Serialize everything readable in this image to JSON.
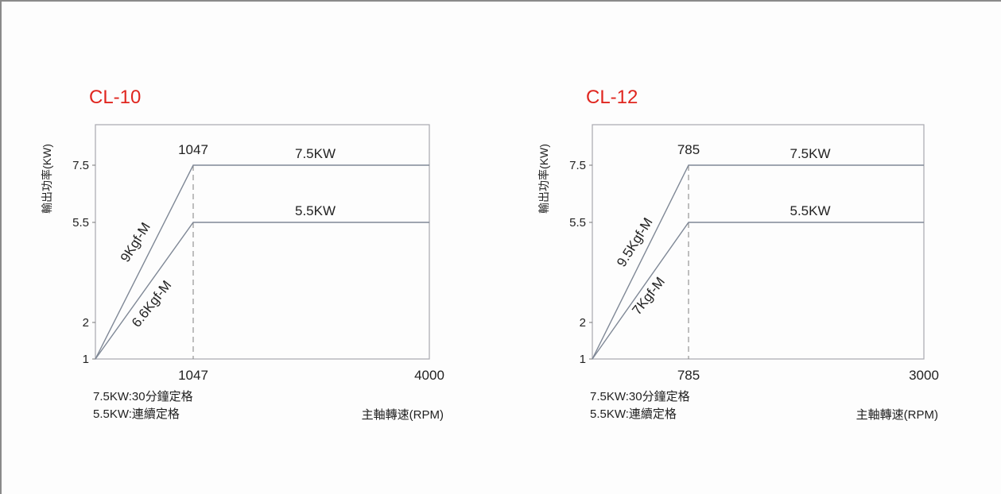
{
  "chart_data": [
    {
      "type": "line",
      "title": "CL-10",
      "ylabel": "輸出功率(KW)",
      "xlabel": "主軸轉速(RPM)",
      "yticks": [
        "1",
        "2",
        "5.5",
        "7.5"
      ],
      "xticks": [
        "1047",
        "4000"
      ],
      "knee_label": "1047",
      "xlim": [
        0,
        4000
      ],
      "series": [
        {
          "name": "7.5KW",
          "slope_label": "9Kgf-M",
          "x": [
            0,
            1047,
            4000
          ],
          "y": [
            1,
            7.5,
            7.5
          ]
        },
        {
          "name": "5.5KW",
          "slope_label": "6.6Kgf-M",
          "x": [
            0,
            1047,
            4000
          ],
          "y": [
            1,
            5.5,
            5.5
          ]
        }
      ],
      "notes": [
        "7.5KW:30分鐘定格",
        "5.5KW:連續定格"
      ]
    },
    {
      "type": "line",
      "title": "CL-12",
      "ylabel": "輸出功率(KW)",
      "xlabel": "主軸轉速(RPM)",
      "yticks": [
        "1",
        "2",
        "5.5",
        "7.5"
      ],
      "xticks": [
        "785",
        "3000"
      ],
      "knee_label": "785",
      "xlim": [
        0,
        3000
      ],
      "series": [
        {
          "name": "7.5KW",
          "slope_label": "9.5Kgf-M",
          "x": [
            0,
            785,
            3000
          ],
          "y": [
            1,
            7.5,
            7.5
          ]
        },
        {
          "name": "5.5KW",
          "slope_label": "7Kgf-M",
          "x": [
            0,
            785,
            3000
          ],
          "y": [
            1,
            5.5,
            5.5
          ]
        }
      ],
      "notes": [
        "7.5KW:30分鐘定格",
        "5.5KW:連續定格"
      ]
    }
  ]
}
